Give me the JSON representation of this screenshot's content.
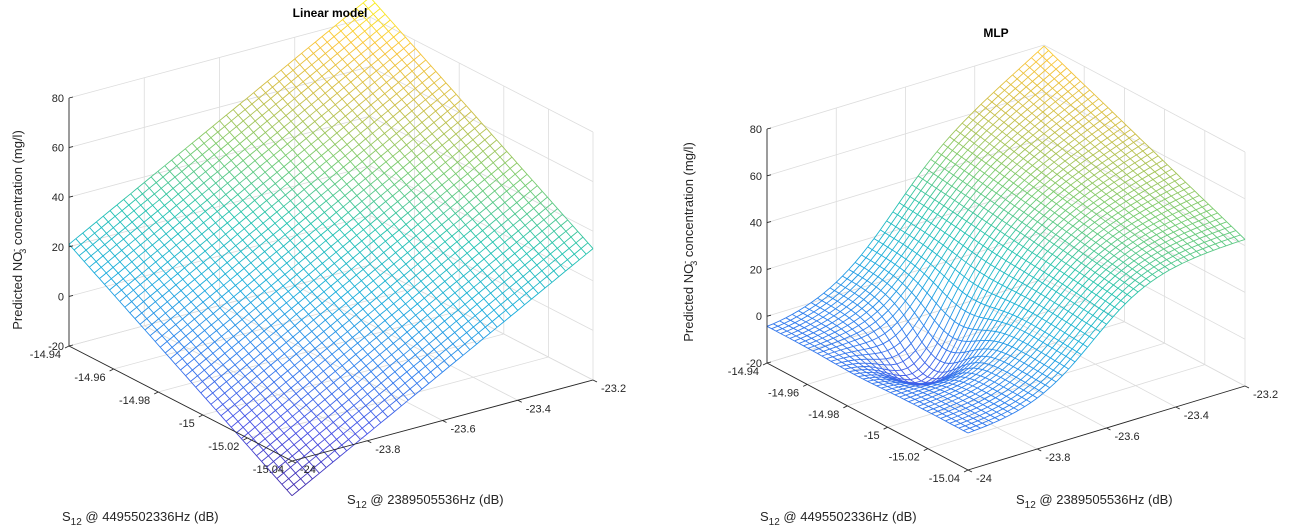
{
  "chart_data": [
    {
      "type": "surface",
      "title": "Linear model",
      "xlabel": "S_12 @ 4495502336Hz (dB)",
      "ylabel": "S_12 @ 2389505536Hz (dB)",
      "zlabel": "Predicted NO_3^- concentration (mg/l)",
      "x_ticks": [
        "-14.94",
        "-14.96",
        "-14.98",
        "-15",
        "-15.02",
        "-15.04"
      ],
      "y_ticks": [
        "-24",
        "-23.8",
        "-23.6",
        "-23.4",
        "-23.2"
      ],
      "z_ticks": [
        "-20",
        "0",
        "20",
        "40",
        "60",
        "80"
      ],
      "xlim": [
        -15.04,
        -14.94
      ],
      "ylim": [
        -24,
        -23.2
      ],
      "zlim": [
        -20,
        80
      ],
      "grid": true,
      "colormap": "parula",
      "corner_values": {
        "x_-14.94_y_-24": 21,
        "x_-15.04_y_-24": -34,
        "x_-14.94_y_-23.2": 88,
        "x_-15.04_y_-23.2": 33
      }
    },
    {
      "type": "surface",
      "title": "MLP",
      "xlabel": "S_12 @ 4495502336Hz (dB)",
      "ylabel": "S_12 @ 2389505536Hz (dB)",
      "zlabel": "Predicted NO_3^- concentration (mg/l)",
      "x_ticks": [
        "-14.94",
        "-14.96",
        "-14.98",
        "-15",
        "-15.02",
        "-15.04"
      ],
      "y_ticks": [
        "-24",
        "-23.8",
        "-23.6",
        "-23.4",
        "-23.2"
      ],
      "z_ticks": [
        "-20",
        "0",
        "20",
        "40",
        "60",
        "80"
      ],
      "xlim": [
        -15.04,
        -14.94
      ],
      "ylim": [
        -24,
        -23.2
      ],
      "zlim": [
        -20,
        80
      ],
      "grid": true,
      "colormap": "parula",
      "corner_values": {
        "x_-14.94_y_-24": -5,
        "x_-15.04_y_-24": -5,
        "x_-14.94_y_-23.2": 86,
        "x_-15.04_y_-23.2": 40
      }
    }
  ]
}
